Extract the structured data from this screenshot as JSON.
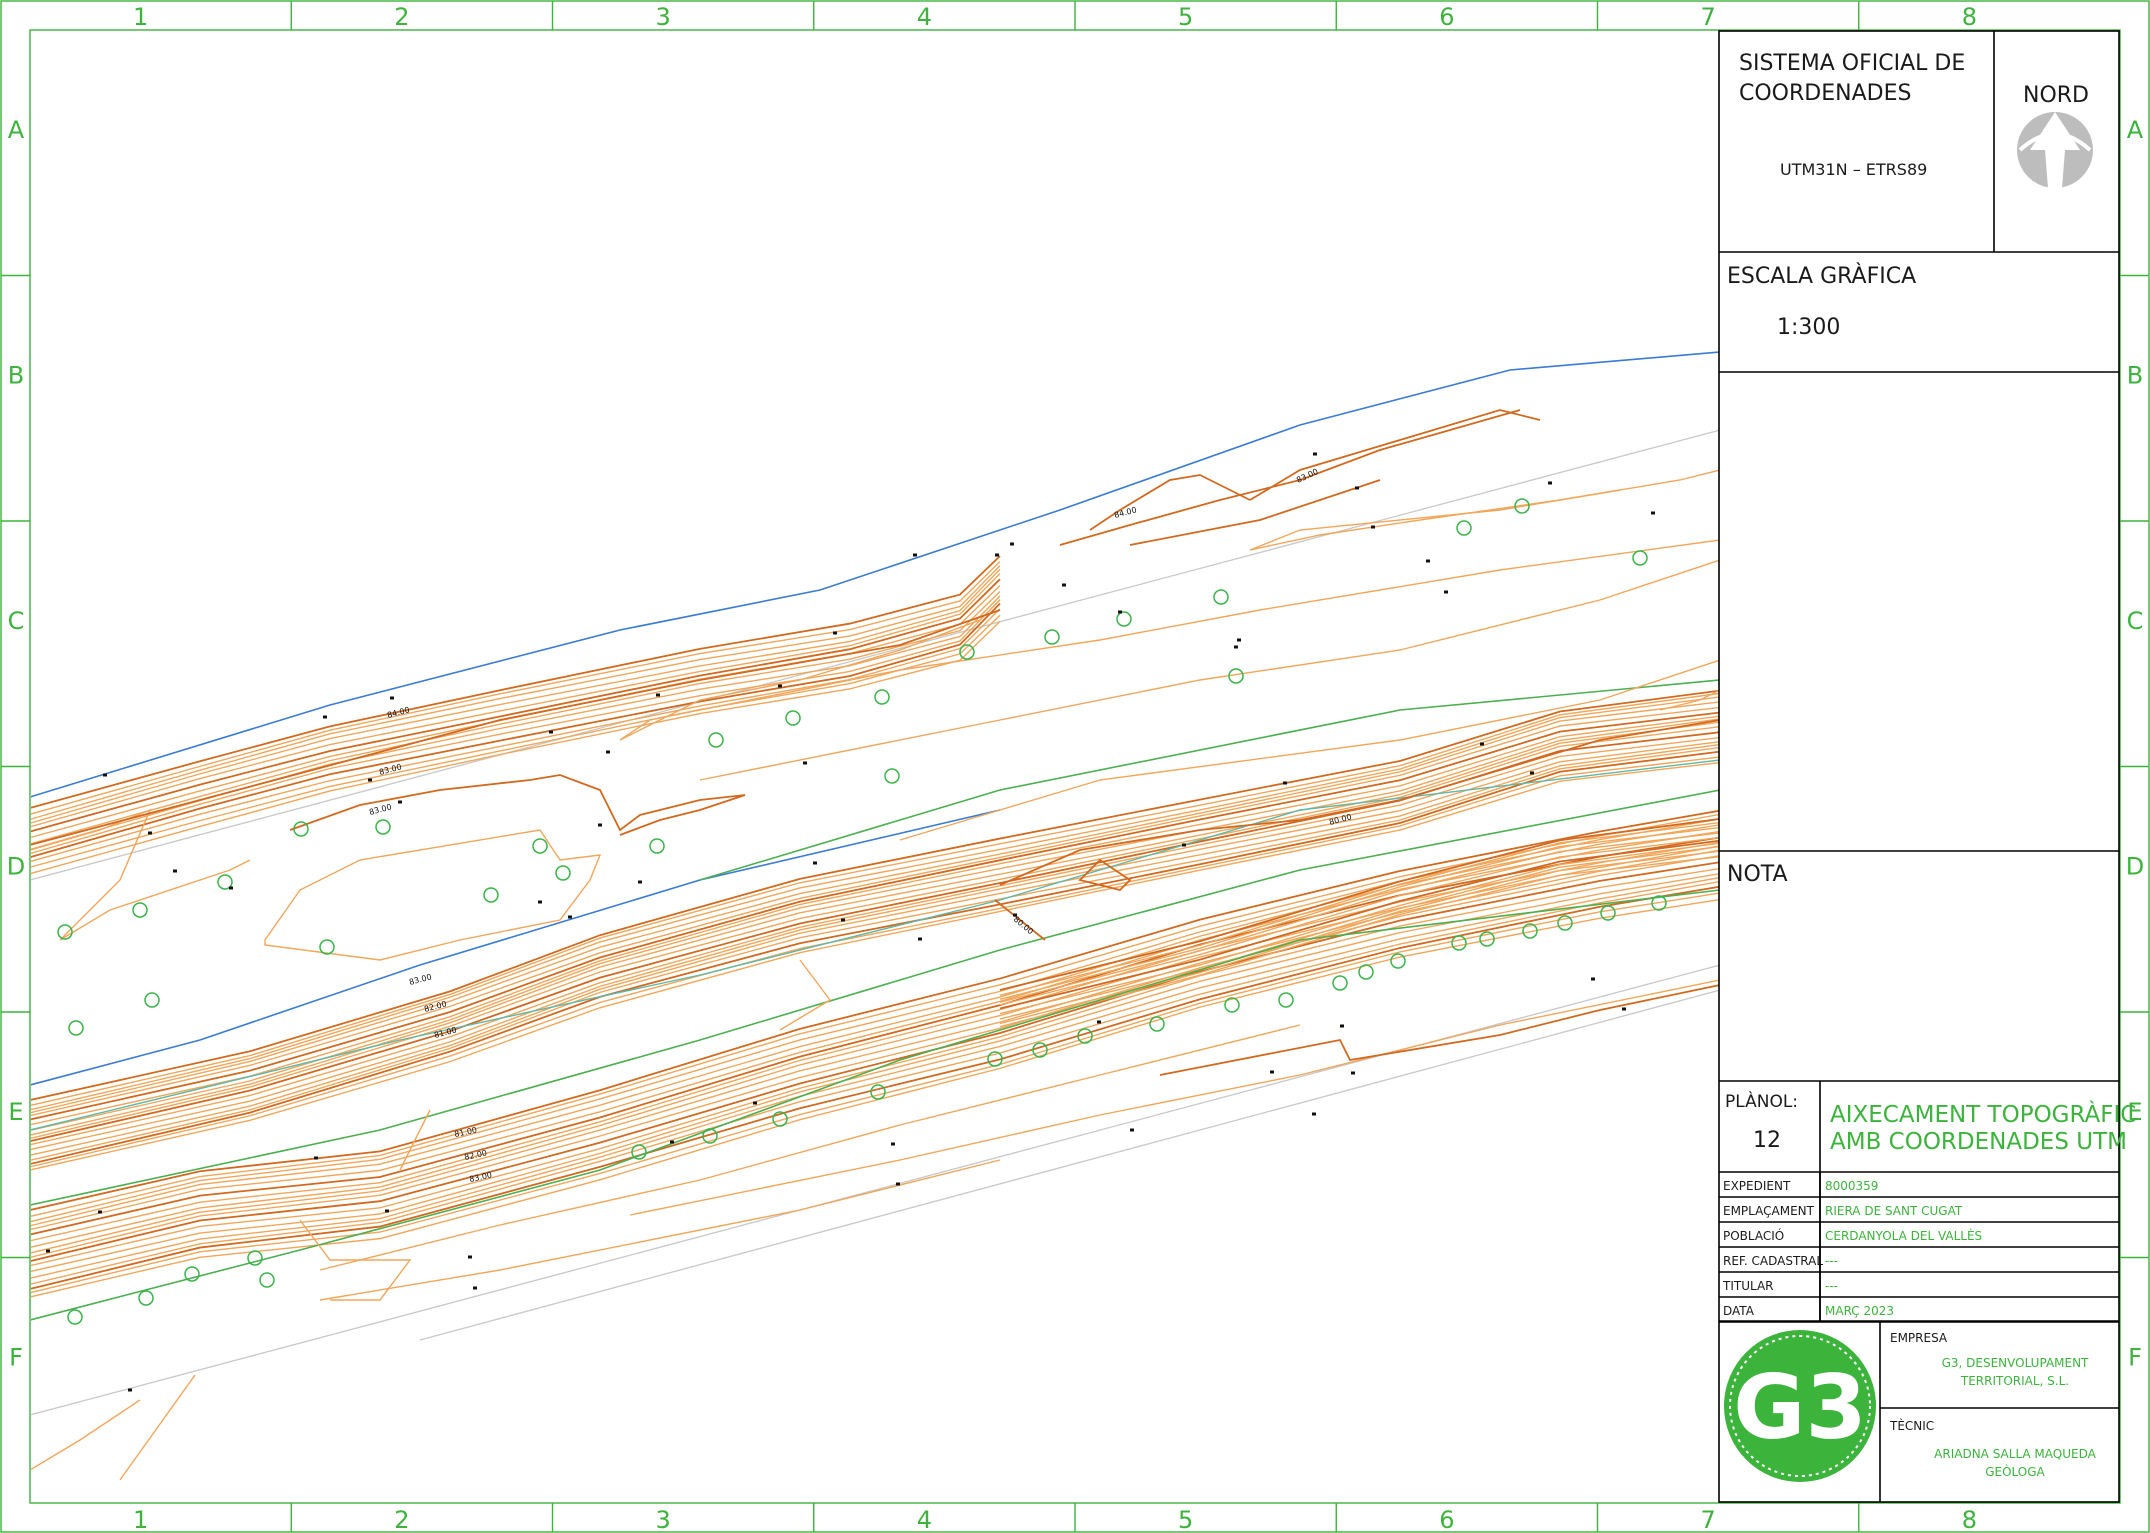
{
  "grid": {
    "columns": [
      "1",
      "2",
      "3",
      "4",
      "5",
      "6",
      "7",
      "8"
    ],
    "rows": [
      "A",
      "B",
      "C",
      "D",
      "E",
      "F"
    ]
  },
  "titleblock": {
    "coord_system_line1": "SISTEMA OFICIAL DE",
    "coord_system_line2": "COORDENADES",
    "coord_ref": "UTM31N – ETRS89",
    "north_label": "NORD",
    "scale_heading": "ESCALA GRÀFICA",
    "scale_value": "1:300",
    "note_heading": "NOTA",
    "plan_label": "PLÀNOL:",
    "plan_number": "12",
    "plan_title_line1": "AIXECAMENT TOPOGRÀFIC",
    "plan_title_line2": "AMB COORDENADES UTM",
    "fields": [
      {
        "label": "EXPEDIENT",
        "value": "8000359"
      },
      {
        "label": "EMPLAÇAMENT",
        "value": "RIERA DE SANT CUGAT"
      },
      {
        "label": "POBLACIÓ",
        "value": "CERDANYOLA DEL VALLÈS"
      },
      {
        "label": "REF. CADASTRAL",
        "value": "---"
      },
      {
        "label": "TITULAR",
        "value": "---"
      },
      {
        "label": "DATA",
        "value": "MARÇ 2023"
      }
    ],
    "logo_text": "G3",
    "company_label": "EMPRESA",
    "company_line1": "G3, DESENVOLUPAMENT",
    "company_line2": "TERRITORIAL, S.L.",
    "technician_label": "TÈCNIC",
    "technician_line1": "ARIADNA SALLA MAQUEDA",
    "technician_line2": "GEÒLOGA"
  },
  "contour_labels": [
    "84.00",
    "83.00",
    "83.00",
    "84.00",
    "83.00",
    "83.00",
    "82.00",
    "81.00",
    "80.00",
    "80.00",
    "81.00",
    "82.00",
    "83.00"
  ],
  "colors": {
    "frame_green": "#3cb43c",
    "contour_orange": "#f2a65a",
    "contour_index": "#d2691e",
    "boundary_blue": "#3a7bd5",
    "road_grey": "#c8c8c8"
  }
}
